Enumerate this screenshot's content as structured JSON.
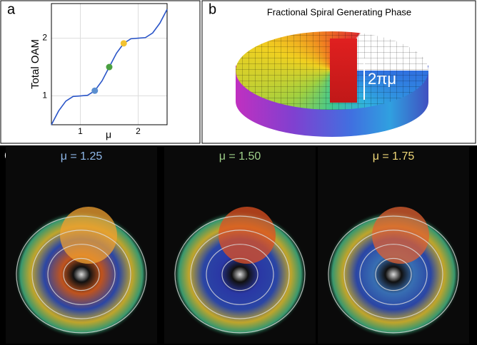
{
  "panel_labels": [
    "a",
    "b",
    "c"
  ],
  "chart_data": {
    "type": "line",
    "x_label": "μ",
    "y_label": "Total OAM",
    "x": [
      0.5,
      0.625,
      0.75,
      0.875,
      1.0,
      1.125,
      1.25,
      1.375,
      1.5,
      1.625,
      1.75,
      1.875,
      2.0,
      2.125,
      2.25,
      2.375,
      2.5
    ],
    "series": [
      {
        "color": "#2a55c8",
        "values": [
          0.5,
          0.74,
          0.91,
          0.99,
          1.0,
          1.01,
          1.09,
          1.26,
          1.5,
          1.74,
          1.91,
          1.99,
          2.0,
          2.01,
          2.09,
          2.26,
          2.5
        ]
      }
    ],
    "points": {
      "x": [
        1.25,
        1.5,
        1.75
      ],
      "values": [
        1.09,
        1.5,
        1.91
      ],
      "colors": [
        "#5b8fd0",
        "#4aa040",
        "#f2c230"
      ]
    },
    "xlim": [
      0.5,
      2.5
    ],
    "ylim": [
      0.5,
      2.6
    ],
    "xticks": [
      1,
      2
    ],
    "yticks": [
      1,
      2
    ],
    "grid": true
  },
  "phase": {
    "title": "Fractional Spiral Generating Phase",
    "annotation": "2πμ"
  },
  "fields": [
    {
      "label": "μ = 1.25",
      "color": "#8fb8e8"
    },
    {
      "label": "μ = 1.50",
      "color": "#9fd08a"
    },
    {
      "label": "μ = 1.75",
      "color": "#f0d878"
    }
  ]
}
